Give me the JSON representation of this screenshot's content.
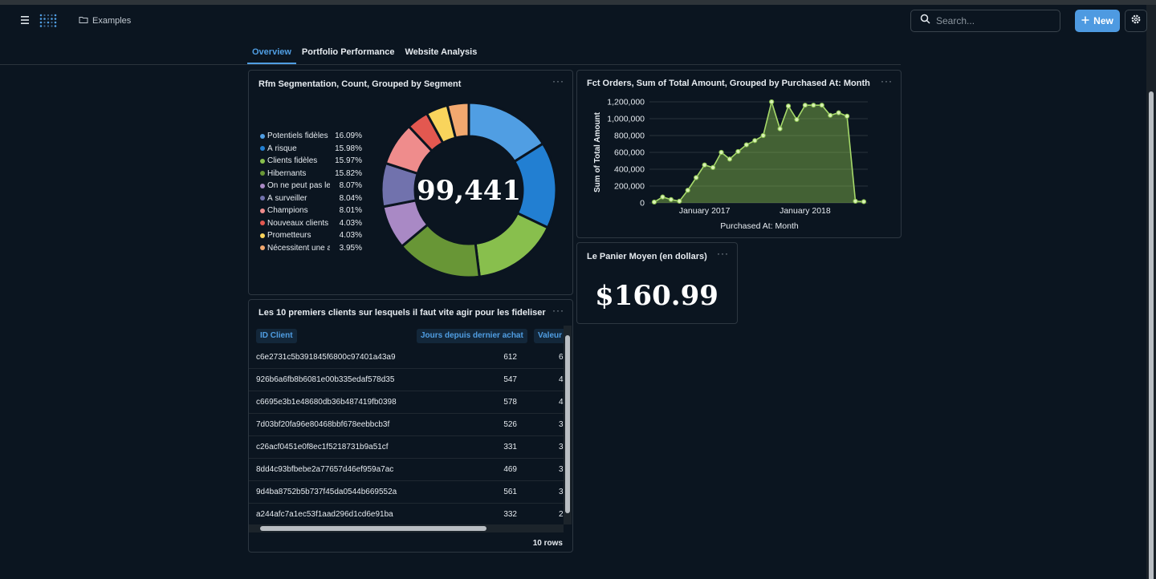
{
  "header": {
    "breadcrumb": "Examples",
    "search_placeholder": "Search...",
    "new_label": "New"
  },
  "tabs": [
    "Overview",
    "Portfolio Performance",
    "Website Analysis"
  ],
  "rfm_card": {
    "title": "Rfm Segmentation, Count, Grouped by Segment",
    "total": "99,441",
    "legend": [
      {
        "name": "Potentiels fidèles",
        "pct": "16.09%",
        "color": "#509ee3"
      },
      {
        "name": "À risque",
        "pct": "15.98%",
        "color": "#227fd2"
      },
      {
        "name": "Clients fidèles",
        "pct": "15.97%",
        "color": "#88bf4d"
      },
      {
        "name": "Hibernants",
        "pct": "15.82%",
        "color": "#689636"
      },
      {
        "name": "On ne peut pas les perdre",
        "pct": "8.07%",
        "color": "#a989c5"
      },
      {
        "name": "À surveiller",
        "pct": "8.04%",
        "color": "#7172ad"
      },
      {
        "name": "Champions",
        "pct": "8.01%",
        "color": "#ef8c8c"
      },
      {
        "name": "Nouveaux clients",
        "pct": "4.03%",
        "color": "#e35850"
      },
      {
        "name": "Prometteurs",
        "pct": "4.03%",
        "color": "#f9d45c"
      },
      {
        "name": "Nécessitent une attention",
        "pct": "3.95%",
        "color": "#f2a86f"
      }
    ]
  },
  "chart_data": {
    "type": "area",
    "title": "Fct Orders, Sum of Total Amount, Grouped by Purchased At: Month",
    "xlabel": "Purchased At: Month",
    "ylabel": "Sum of Total Amount",
    "ylim": [
      0,
      1200000
    ],
    "yticks": [
      "1,200,000",
      "1,000,000",
      "800,000",
      "600,000",
      "400,000",
      "200,000",
      "0"
    ],
    "xticks": [
      "January 2017",
      "January 2018"
    ],
    "series": [
      {
        "values": [
          10000,
          70000,
          40000,
          20000,
          150000,
          300000,
          450000,
          420000,
          600000,
          520000,
          610000,
          690000,
          740000,
          800000,
          1200000,
          880000,
          1150000,
          990000,
          1160000,
          1160000,
          1160000,
          1040000,
          1070000,
          1030000,
          20000,
          15000
        ]
      }
    ],
    "grid": true,
    "color": "#88bf4d"
  },
  "panier_card": {
    "title": "Le Panier Moyen (en dollars)",
    "value": "$160.99"
  },
  "clients_card": {
    "title": "Les 10 premiers clients sur lesquels il faut vite agir pour les fideliser",
    "columns": [
      "ID Client",
      "Jours depuis dernier achat",
      "Valeur"
    ],
    "rows": [
      {
        "id": "c6e2731c5b391845f6800c97401a43a9",
        "days": "612",
        "val": "6"
      },
      {
        "id": "926b6a6fb8b6081e00b335edaf578d35",
        "days": "547",
        "val": "4"
      },
      {
        "id": "c6695e3b1e48680db36b487419fb0398",
        "days": "578",
        "val": "4"
      },
      {
        "id": "7d03bf20fa96e80468bbf678eebbcb3f",
        "days": "526",
        "val": "3"
      },
      {
        "id": "c26acf0451e0f8ec1f5218731b9a51cf",
        "days": "331",
        "val": "3"
      },
      {
        "id": "8dd4c93bfbebe2a77657d46ef959a7ac",
        "days": "469",
        "val": "3"
      },
      {
        "id": "9d4ba8752b5b737f45da0544b669552a",
        "days": "561",
        "val": "3"
      },
      {
        "id": "a244afc7a1ec53f1aad296d1cd6e91ba",
        "days": "332",
        "val": "2"
      }
    ],
    "footer": "10 rows"
  }
}
